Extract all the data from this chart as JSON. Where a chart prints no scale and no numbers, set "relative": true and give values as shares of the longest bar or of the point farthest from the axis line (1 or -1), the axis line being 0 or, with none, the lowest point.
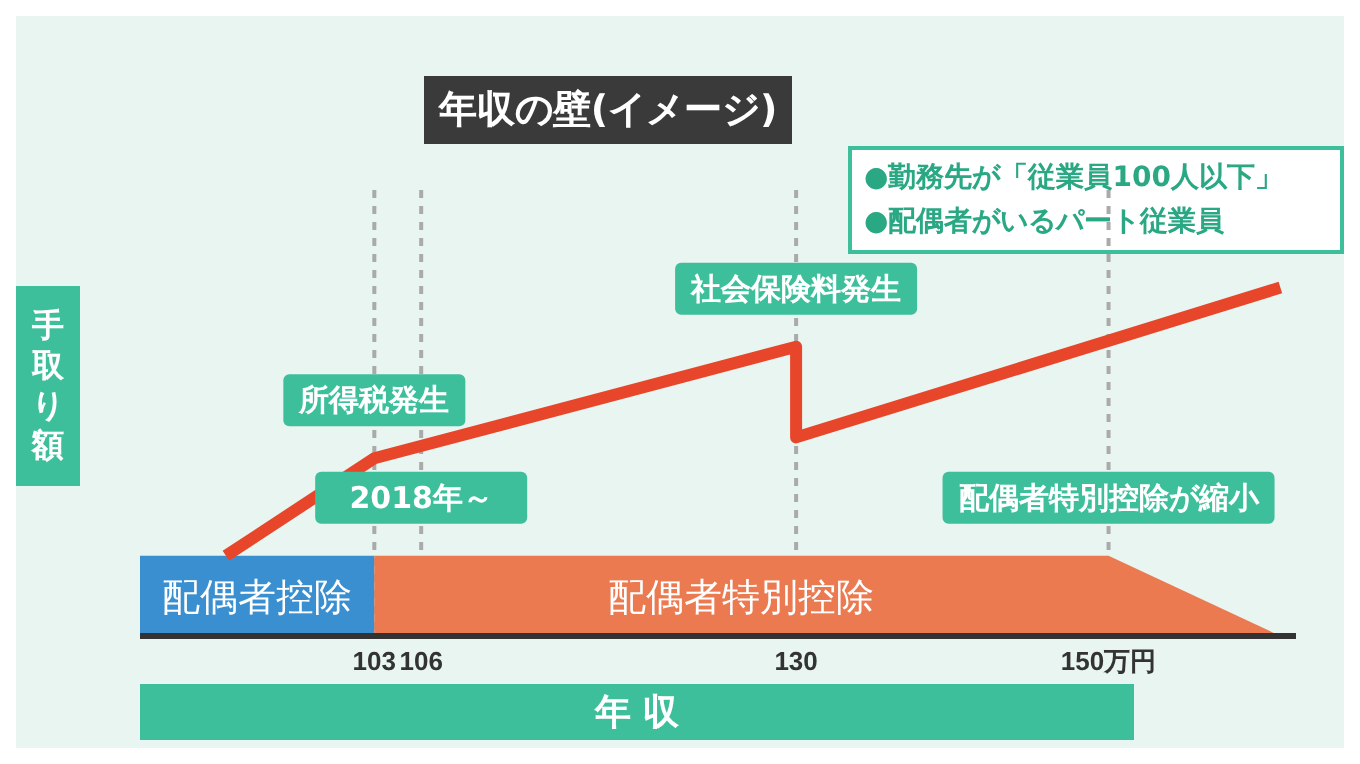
{
  "chart_data": {
    "type": "line",
    "title": "年収の壁(イメージ)",
    "xlabel": "年 収",
    "ylabel": "手取り額",
    "relative": true,
    "xlim": [
      88,
      162
    ],
    "xticks": [
      103,
      106,
      130,
      {
        "value": 150,
        "label": "150万円"
      }
    ],
    "grid": "x",
    "line_style": "solid",
    "series": [
      {
        "name": "配偶者控除",
        "type": "area",
        "color": "#3a8fd0",
        "x": [
          88,
          103
        ],
        "values": [
          0.23,
          0.23
        ]
      },
      {
        "name": "配偶者特別控除",
        "type": "area",
        "color": "#ec7a50",
        "x": [
          103,
          150,
          161
        ],
        "values": [
          0.23,
          0.23,
          0
        ]
      },
      {
        "color": "#e8462a",
        "x": [
          93.5,
          103,
          130,
          130,
          161
        ],
        "values": [
          0.23,
          0.51,
          0.83,
          0.57,
          1
        ]
      }
    ],
    "annotations": [
      {
        "text": "所得税発生",
        "x": 103,
        "y": 0.51
      },
      {
        "text": "社会保険料発生",
        "x": 130,
        "y": 0.83
      },
      {
        "text": "配偶者特別控除が縮小",
        "x": 150,
        "y": 0.23
      },
      {
        "text": "2018年～",
        "x": 106,
        "y": 0.23
      },
      "●勤務先が「従業員100人以下」",
      "●配偶者がいるパート従業員"
    ]
  }
}
